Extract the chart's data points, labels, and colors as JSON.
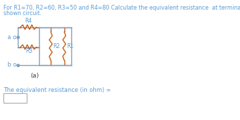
{
  "title_line1": "For R1=70, R2=60, R3=50 and R4=80 Calculate the equivalent resistance  at terminals a-b for the",
  "title_line2": "shown circuit.",
  "circuit_label": "(a)",
  "bottom_label": "The equivalent resistance (in ohm) =",
  "text_color": "#5b9bd5",
  "line_color": "#7f9fbc",
  "resistor_color": "#c55a11",
  "bg_color": "#ffffff",
  "font_size_title": 5.8,
  "font_size_labels": 5.5,
  "font_size_circuit": 6.0,
  "lw": 1.0
}
